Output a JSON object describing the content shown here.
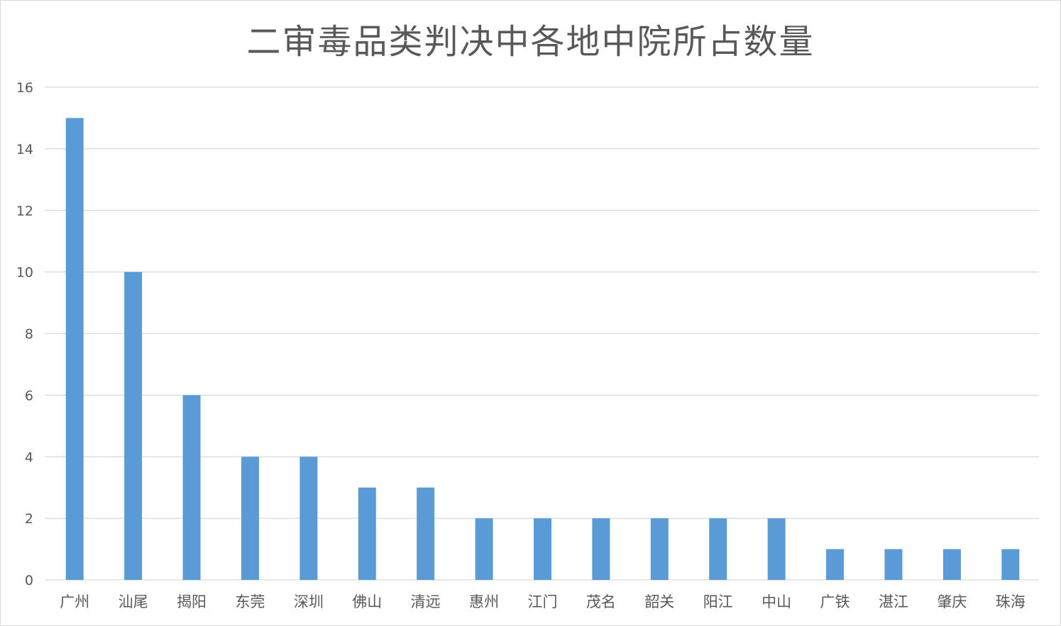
{
  "chart_data": {
    "type": "bar",
    "title": "二审毒品类判决中各地中院所占数量",
    "xlabel": "",
    "ylabel": "",
    "ylim": [
      0,
      16
    ],
    "yticks": [
      0,
      2,
      4,
      6,
      8,
      10,
      12,
      14,
      16
    ],
    "grid": true,
    "legend": "none",
    "categories": [
      "广州",
      "汕尾",
      "揭阳",
      "东莞",
      "深圳",
      "佛山",
      "清远",
      "惠州",
      "江门",
      "茂名",
      "韶关",
      "阳江",
      "中山",
      "广铁",
      "湛江",
      "肇庆",
      "珠海"
    ],
    "values": [
      15,
      10,
      6,
      4,
      4,
      3,
      3,
      2,
      2,
      2,
      2,
      2,
      2,
      1,
      1,
      1,
      1
    ],
    "colors": {
      "bar": "#5b9bd5",
      "grid": "#d9d9d9",
      "text": "#595959"
    }
  }
}
